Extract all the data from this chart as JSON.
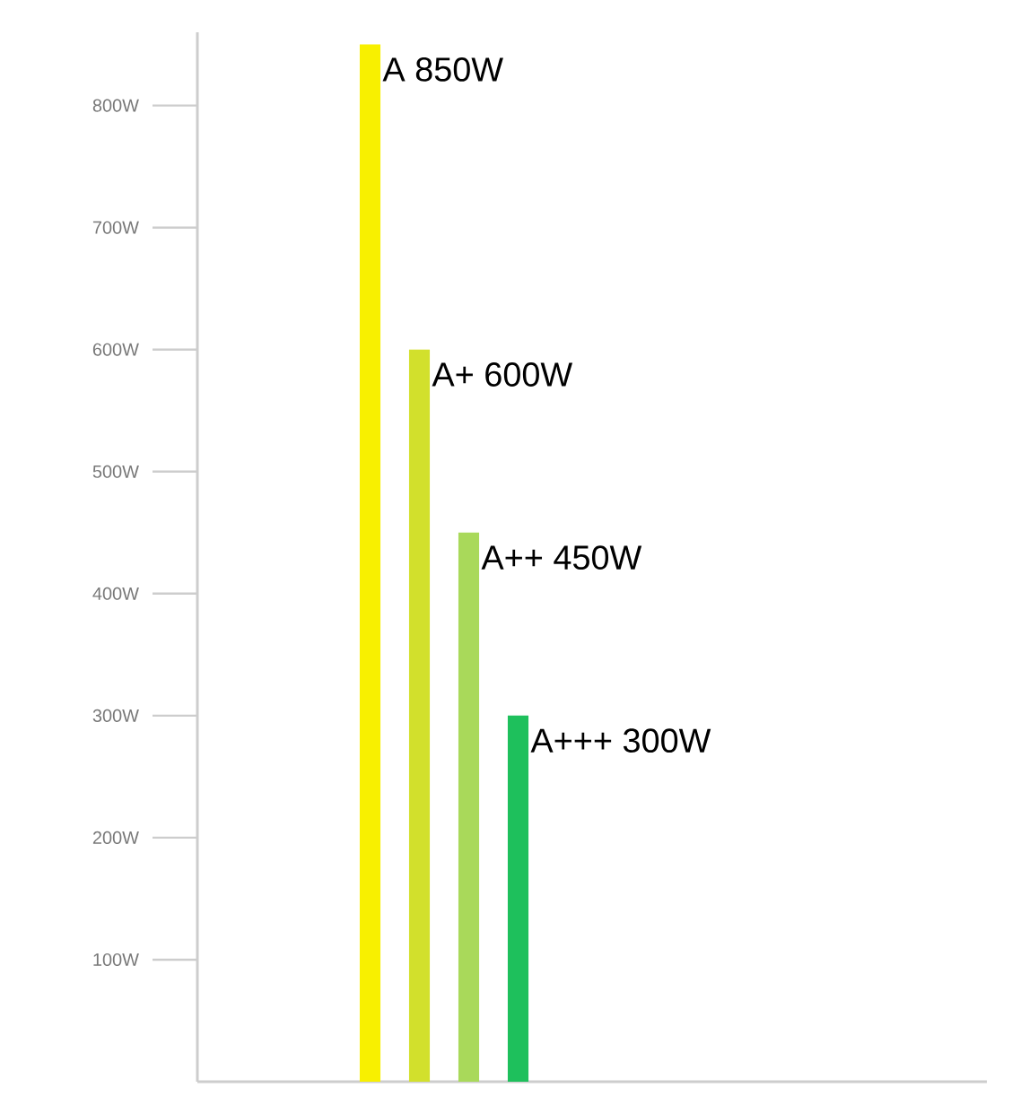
{
  "chart_data": {
    "type": "bar",
    "categories": [
      null,
      null,
      null,
      null,
      null,
      null,
      null,
      null,
      null,
      null,
      null,
      null,
      null,
      null,
      null,
      null
    ],
    "values": [
      null,
      null,
      null,
      850,
      600,
      450,
      300,
      null,
      null,
      null,
      null,
      null,
      null,
      null,
      null,
      null
    ],
    "colors": [
      null,
      null,
      null,
      "#f8f000",
      "#d2e02c",
      "#a9d95a",
      "#1ec05c",
      null,
      null,
      null,
      null,
      null,
      null,
      null,
      null,
      null
    ],
    "annotations": [
      "A 850W",
      "A+ 600W",
      "A++ 450W",
      "A+++ 300W"
    ],
    "ylim": [
      0,
      860
    ],
    "yticks": [
      {
        "value": 100,
        "label": "100W"
      },
      {
        "value": 200,
        "label": "200W"
      },
      {
        "value": 300,
        "label": "300W"
      },
      {
        "value": 400,
        "label": "400W"
      },
      {
        "value": 500,
        "label": "500W"
      },
      {
        "value": 600,
        "label": "600W"
      },
      {
        "value": 700,
        "label": "700W"
      },
      {
        "value": 800,
        "label": "800W"
      }
    ],
    "tick_labels": "y"
  }
}
